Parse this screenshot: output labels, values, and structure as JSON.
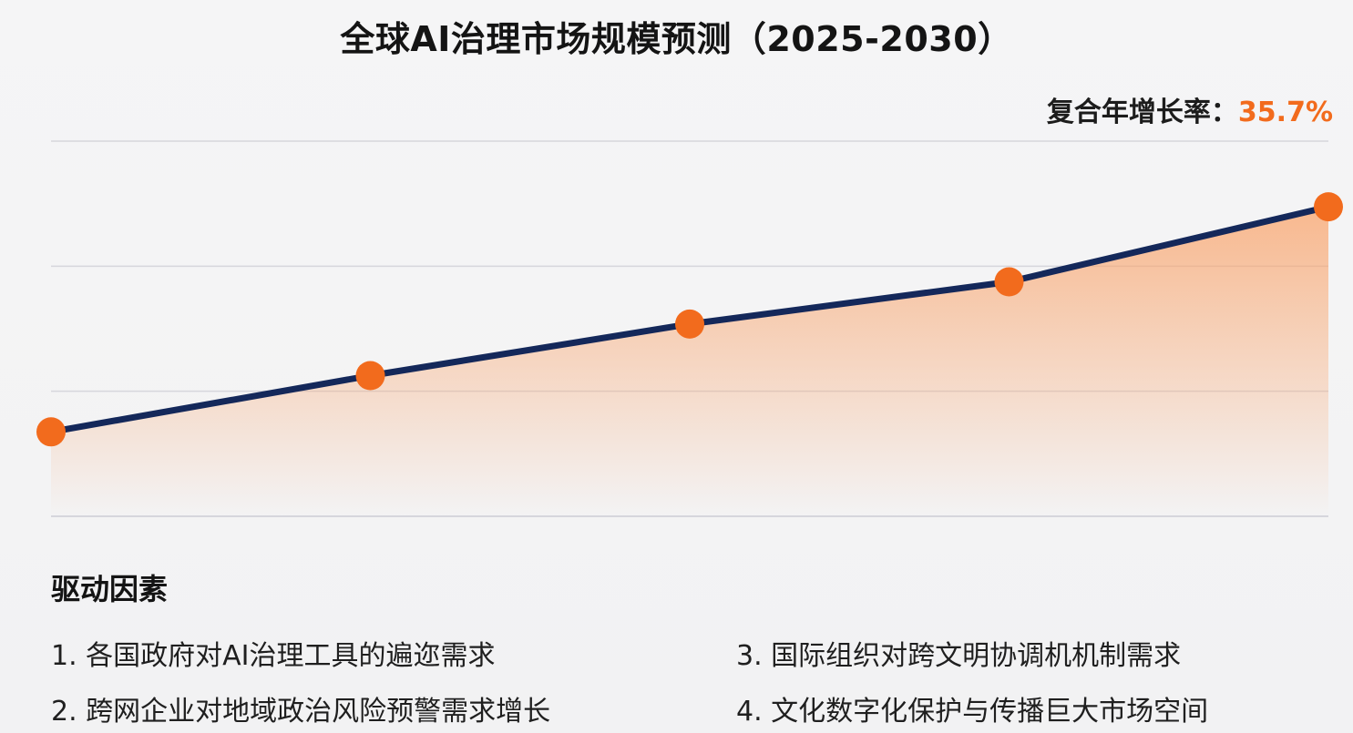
{
  "title": "全球AI治理市场规模预测（2025-2030）",
  "cagr": {
    "label": "复合年增长率：",
    "value": "35.7%"
  },
  "colors": {
    "line": "#14285a",
    "marker": "#f26b1d",
    "fill": "#f9a46c",
    "grid": "#d6d6dc",
    "accent": "#f26b1d"
  },
  "chart_data": {
    "type": "line",
    "title": "全球AI治理市场规模预测（2025-2030）",
    "xlabel": "",
    "ylabel": "",
    "x": [
      0,
      1,
      2,
      3,
      4
    ],
    "series": [
      {
        "values": [
          0.9,
          1.5,
          2.05,
          2.5,
          3.3
        ]
      }
    ],
    "ylim": [
      0,
      4
    ],
    "grid": true,
    "area_fill": true,
    "annotations": [
      "复合年增长率：35.7%"
    ]
  },
  "drivers": {
    "heading": "驱动因素",
    "items": [
      "1. 各国政府对AI治理工具的遍迩需求",
      "2. 跨网企业对地域政治风险预警需求增长",
      "3. 国际组织对跨文明协调机机制需求",
      "4. 文化数字化保护与传播巨大市场空间"
    ]
  }
}
